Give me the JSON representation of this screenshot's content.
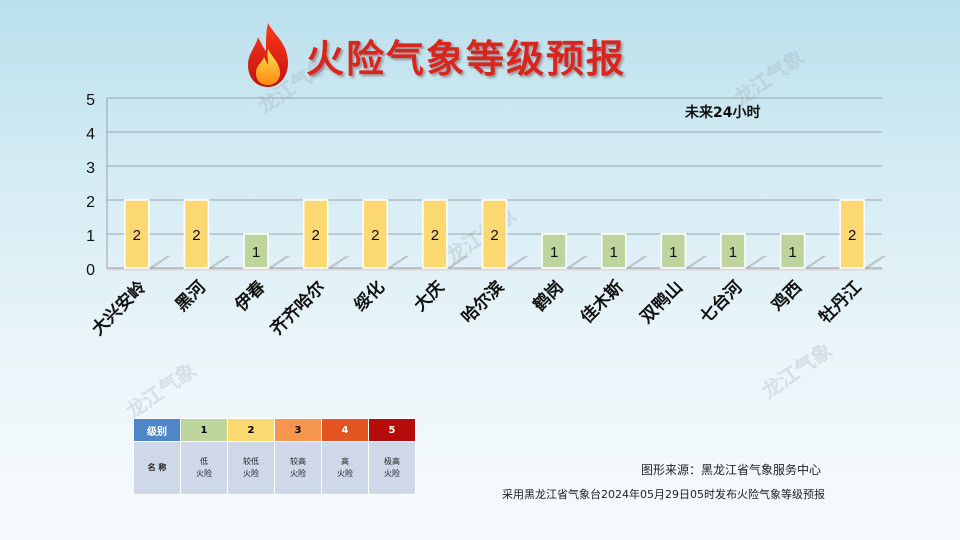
{
  "header": {
    "title": "火险气象等级预报",
    "icon": "flame-icon"
  },
  "watermarks": [
    "龙江气象",
    "龙江气象",
    "龙江气象",
    "龙江气象",
    "龙江气象"
  ],
  "chart_data": {
    "type": "bar",
    "title": "火险气象等级预报",
    "annotation": "未来24小时",
    "categories": [
      "大兴安岭",
      "黑河",
      "伊春",
      "齐齐哈尔",
      "绥化",
      "大庆",
      "哈尔滨",
      "鹤岗",
      "佳木斯",
      "双鸭山",
      "七台河",
      "鸡西",
      "牡丹江"
    ],
    "values": [
      2,
      2,
      1,
      2,
      2,
      2,
      2,
      1,
      1,
      1,
      1,
      1,
      2
    ],
    "ylim": [
      0,
      5
    ],
    "yticks": [
      0,
      1,
      2,
      3,
      4,
      5
    ],
    "grid": true,
    "level_colors": {
      "1": "#bdd59d",
      "2": "#fcd870"
    }
  },
  "legend": {
    "header_label": "级别",
    "name_label": "名 称",
    "levels": [
      {
        "level": "1",
        "name_line1": "低",
        "name_line2": "火险",
        "color": "#bdd59d"
      },
      {
        "level": "2",
        "name_line1": "较低",
        "name_line2": "火险",
        "color": "#fcd870"
      },
      {
        "level": "3",
        "name_line1": "较高",
        "name_line2": "火险",
        "color": "#f6954d"
      },
      {
        "level": "4",
        "name_line1": "高",
        "name_line2": "火险",
        "color": "#e25422"
      },
      {
        "level": "5",
        "name_line1": "极高",
        "name_line2": "火险",
        "color": "#b50b0b"
      }
    ]
  },
  "footer": {
    "source": "图形来源：黑龙江省气象服务中心",
    "publish": "采用黑龙江省气象台2024年05月29日05时发布火险气象等级预报"
  }
}
